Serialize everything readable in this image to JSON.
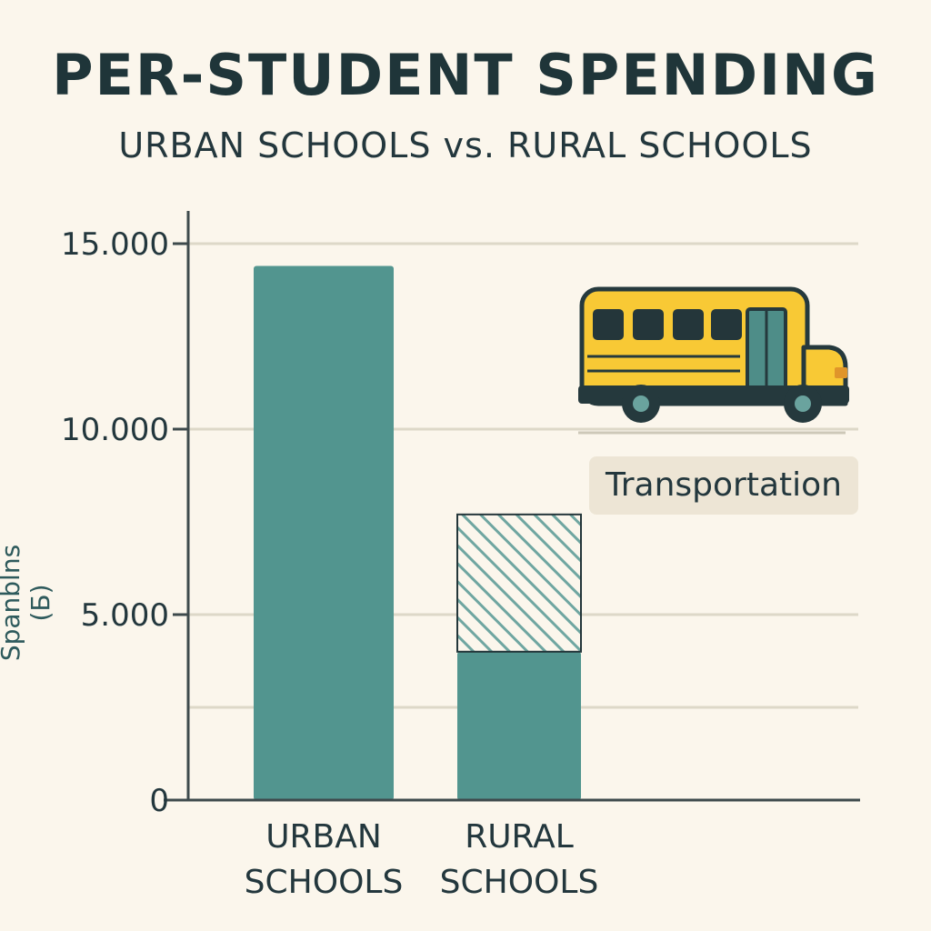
{
  "chart_data": {
    "type": "bar",
    "title": "PER-STUDENT SPENDING",
    "subtitle": "URBAN SCHOOLS vs. RURAL SCHOOLS",
    "ylabel": "Spanblns (Б)",
    "xlabel": "",
    "ylim": [
      0,
      15000
    ],
    "yticks": [
      {
        "value": 0,
        "label": "0"
      },
      {
        "value": 5000,
        "label": "5.000"
      },
      {
        "value": 10000,
        "label": "10.000"
      },
      {
        "value": 15000,
        "label": "15.000"
      }
    ],
    "gridlines": [
      5000,
      10000,
      15000,
      2500
    ],
    "grid": true,
    "categories": [
      {
        "lines": [
          "URBAN",
          "SCHOOLS"
        ]
      },
      {
        "lines": [
          "RURAL",
          "SCHOOLS"
        ]
      }
    ],
    "series": [
      {
        "values": [
          14400,
          4000
        ],
        "color": "#52958f",
        "pattern": "solid"
      },
      {
        "name": "Transportation",
        "values": [
          0,
          3700
        ],
        "color": "#52958f",
        "pattern": "hatched"
      }
    ],
    "annotation": {
      "text": "Transportation",
      "icon": "school-bus-icon"
    },
    "colors": {
      "bar": "#52958f",
      "axis": "#3e4a4c",
      "grid": "#ddd8c8",
      "bus_body": "#f8c935",
      "bus_outline": "#25393d",
      "bus_windows": "#24363a",
      "bus_door": "#4e8d88",
      "label_bg": "#ede5d5"
    }
  }
}
